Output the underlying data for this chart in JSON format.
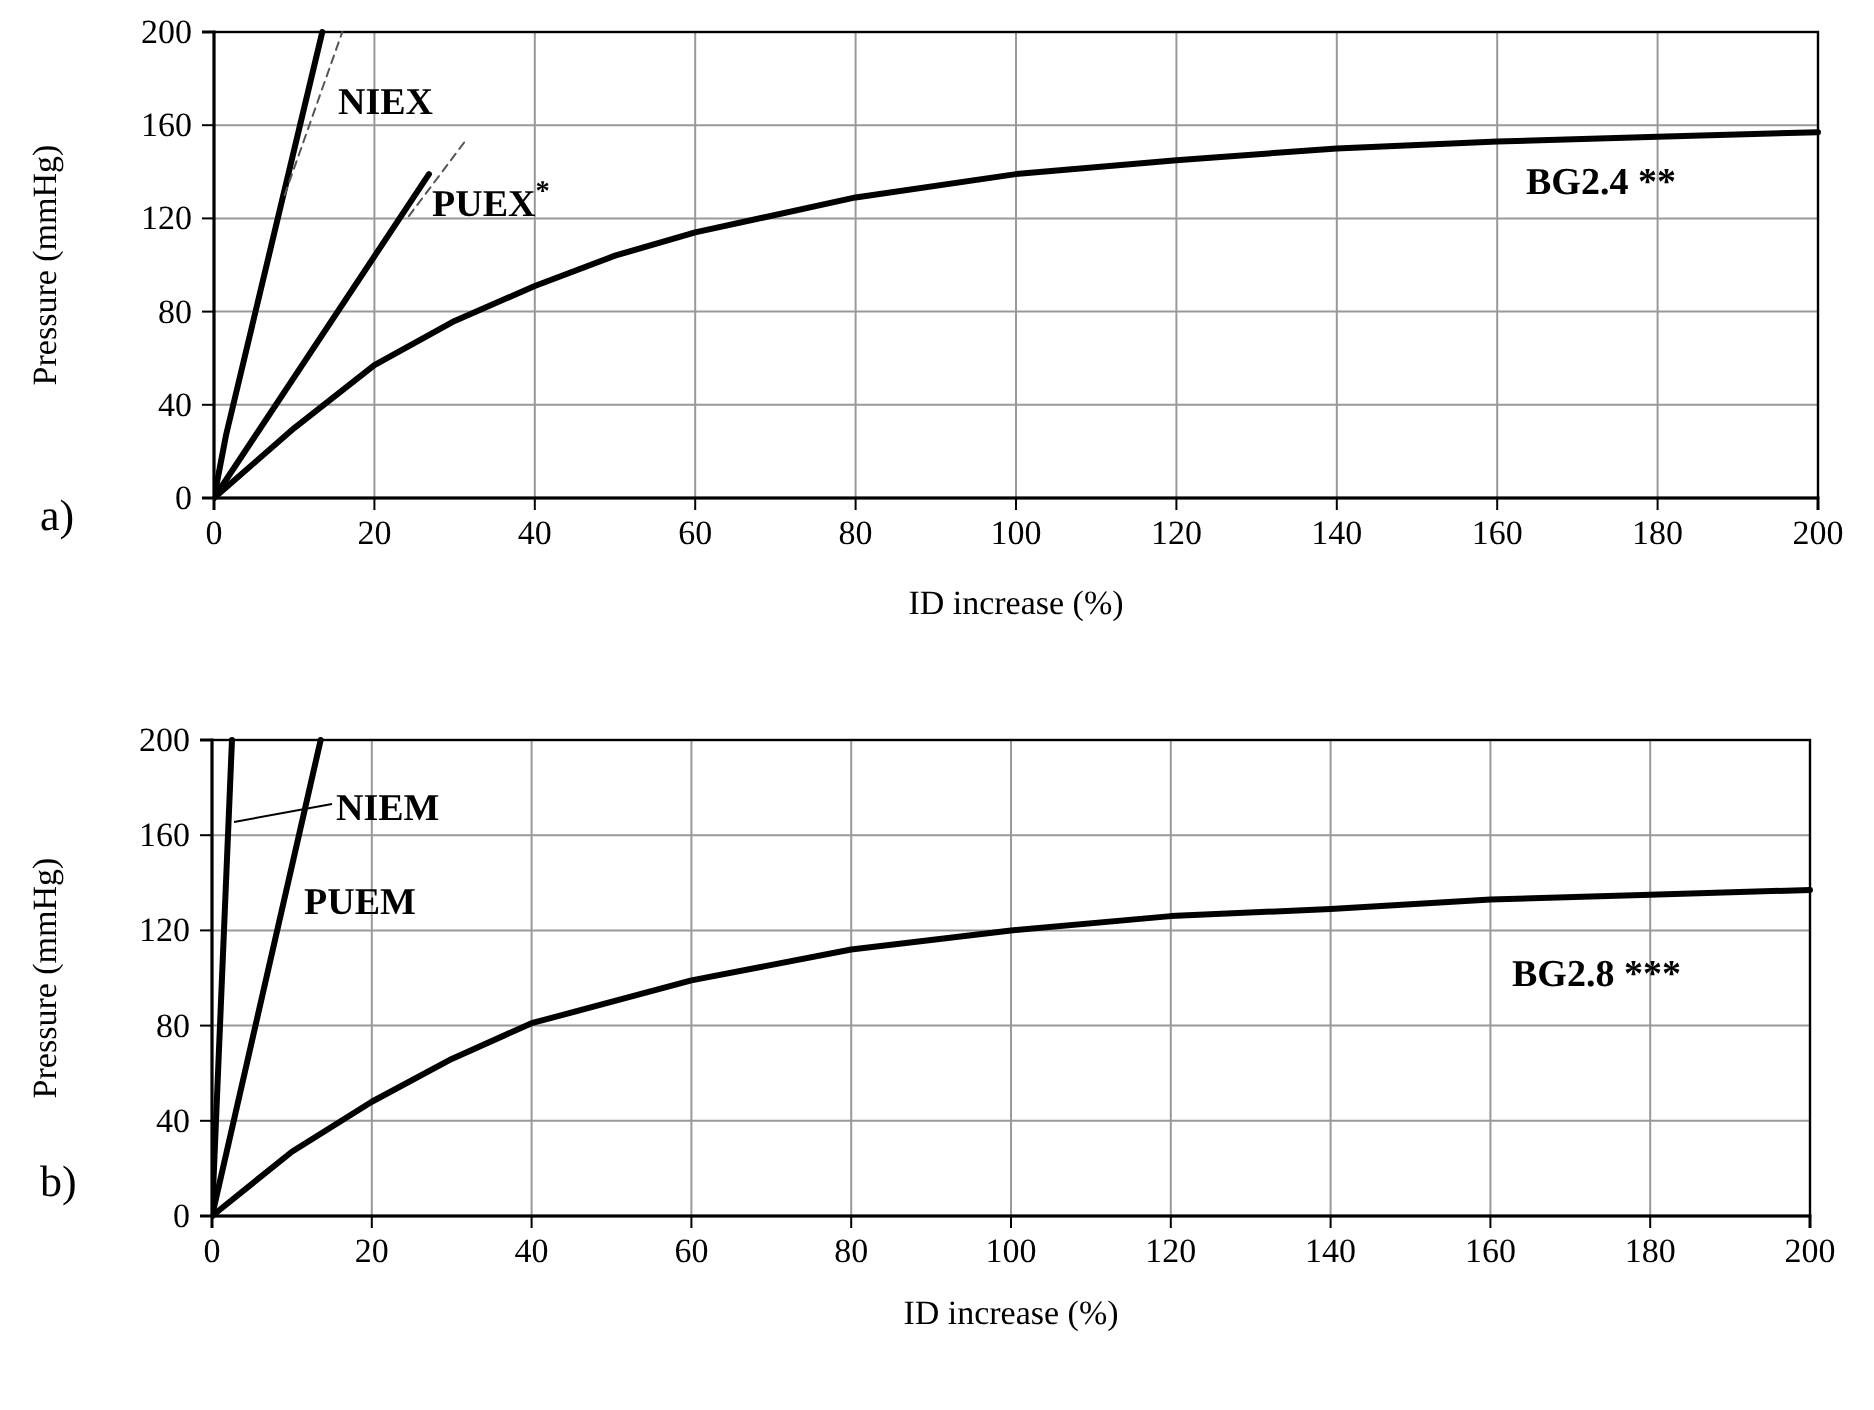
{
  "chart_data": [
    {
      "type": "line",
      "xlabel": "ID increase (%)",
      "ylabel": "Pressure (mmHg)",
      "xlim": [
        0,
        200
      ],
      "ylim": [
        0,
        200
      ],
      "xticks": [
        0,
        20,
        40,
        60,
        80,
        100,
        120,
        140,
        160,
        180,
        200
      ],
      "yticks": [
        0,
        40,
        80,
        120,
        160,
        200
      ],
      "grid": true,
      "line_style": "solid",
      "annotations": [
        "a)"
      ],
      "series": [
        {
          "name": "NIEX",
          "color": "#000000",
          "x": [
            0,
            1.5,
            13.5
          ],
          "values": [
            0,
            27,
            200
          ]
        },
        {
          "name": "PUEX$^{*}$",
          "color": "#000000",
          "x": [
            0,
            26.8
          ],
          "values": [
            0,
            139
          ]
        },
        {
          "name": "BG2.4 **",
          "color": "#000000",
          "x": [
            0,
            10,
            20,
            30,
            40,
            50,
            60,
            80,
            100,
            120,
            140,
            160,
            180,
            200
          ],
          "values": [
            0,
            30,
            57,
            76,
            91,
            104,
            114,
            129,
            139,
            145,
            150,
            153,
            155,
            157
          ]
        },
        {
          "color": "#555555",
          "line_style": "dashed",
          "x": [
            8.8,
            16
          ],
          "values": [
            130,
            200
          ]
        },
        {
          "color": "#555555",
          "line_style": "dashed",
          "x": [
            24.3,
            31.5
          ],
          "values": [
            121,
            154
          ]
        }
      ]
    },
    {
      "type": "line",
      "xlabel": "ID increase (%)",
      "ylabel": "Pressure (mmHg)",
      "xlim": [
        0,
        200
      ],
      "ylim": [
        0,
        200
      ],
      "xticks": [
        0,
        20,
        40,
        60,
        80,
        100,
        120,
        140,
        160,
        180,
        200
      ],
      "yticks": [
        0,
        40,
        80,
        120,
        160,
        200
      ],
      "grid": true,
      "line_style": "solid",
      "annotations": [
        "b)"
      ],
      "series": [
        {
          "name": "NIEM",
          "color": "#000000",
          "x": [
            0,
            2.5
          ],
          "values": [
            0,
            200
          ]
        },
        {
          "name": "PUEM",
          "color": "#000000",
          "x": [
            0,
            13.6
          ],
          "values": [
            0,
            200
          ]
        },
        {
          "name": "BG2.8 ***",
          "color": "#000000",
          "x": [
            0,
            10,
            20,
            30,
            40,
            60,
            80,
            100,
            120,
            140,
            160,
            180,
            200
          ],
          "values": [
            0,
            27,
            48,
            66,
            81,
            99,
            112,
            120,
            126,
            129,
            133,
            135,
            137
          ]
        }
      ]
    }
  ]
}
